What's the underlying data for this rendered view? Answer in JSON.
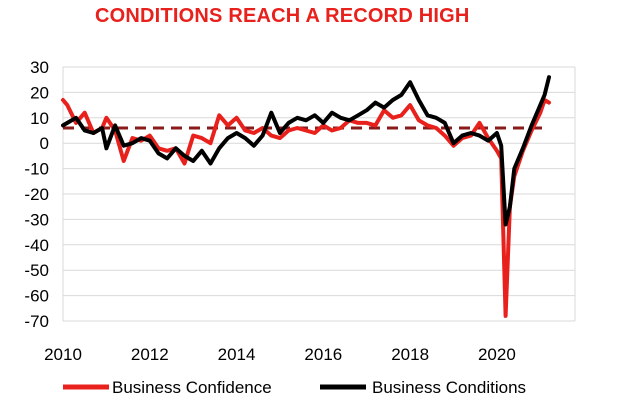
{
  "chart_data": {
    "type": "line",
    "title": "CONDITIONS REACH A RECORD HIGH",
    "xlabel": "",
    "ylabel": "",
    "xlim": [
      2010,
      2021.8
    ],
    "ylim": [
      -70,
      30
    ],
    "x_ticks": [
      "2010",
      "2012",
      "2014",
      "2016",
      "2018",
      "2020"
    ],
    "y_ticks": [
      "30",
      "20",
      "10",
      "0",
      "-10",
      "-20",
      "-30",
      "-40",
      "-50",
      "-60",
      "-70"
    ],
    "grid": "horizontal",
    "legend_position": "bottom",
    "reference_line": {
      "y": 6,
      "style": "dashed",
      "color": "#8b1a1a"
    },
    "series": [
      {
        "name": "Business Confidence",
        "color": "#e8211d",
        "x": [
          2010.0,
          2010.1,
          2010.3,
          2010.5,
          2010.7,
          2010.9,
          2011.0,
          2011.2,
          2011.4,
          2011.6,
          2011.8,
          2012.0,
          2012.2,
          2012.4,
          2012.6,
          2012.8,
          2013.0,
          2013.2,
          2013.4,
          2013.6,
          2013.8,
          2014.0,
          2014.2,
          2014.4,
          2014.6,
          2014.8,
          2015.0,
          2015.2,
          2015.4,
          2015.6,
          2015.8,
          2016.0,
          2016.2,
          2016.4,
          2016.6,
          2016.8,
          2017.0,
          2017.2,
          2017.4,
          2017.6,
          2017.8,
          2018.0,
          2018.2,
          2018.4,
          2018.6,
          2018.8,
          2019.0,
          2019.2,
          2019.4,
          2019.6,
          2019.8,
          2020.0,
          2020.1,
          2020.2,
          2020.3,
          2020.4,
          2020.6,
          2020.8,
          2021.0,
          2021.1,
          2021.2
        ],
        "values": [
          17,
          15,
          8,
          12,
          4,
          6,
          10,
          5,
          -7,
          2,
          1,
          3,
          -2,
          -3,
          -2,
          -8,
          3,
          2,
          0,
          11,
          7,
          10,
          5,
          4,
          6,
          3,
          2,
          5,
          6,
          5,
          4,
          7,
          5,
          6,
          9,
          8,
          8,
          7,
          13,
          10,
          11,
          15,
          9,
          7,
          6,
          3,
          -1,
          2,
          3,
          8,
          2,
          -3,
          -6,
          -68,
          -25,
          -13,
          -3,
          5,
          12,
          17,
          16
        ]
      },
      {
        "name": "Business Conditions",
        "color": "#000000",
        "x": [
          2010.0,
          2010.1,
          2010.3,
          2010.5,
          2010.7,
          2010.9,
          2011.0,
          2011.2,
          2011.4,
          2011.6,
          2011.8,
          2012.0,
          2012.2,
          2012.4,
          2012.6,
          2012.8,
          2013.0,
          2013.2,
          2013.4,
          2013.6,
          2013.8,
          2014.0,
          2014.2,
          2014.4,
          2014.6,
          2014.8,
          2015.0,
          2015.2,
          2015.4,
          2015.6,
          2015.8,
          2016.0,
          2016.2,
          2016.4,
          2016.6,
          2016.8,
          2017.0,
          2017.2,
          2017.4,
          2017.6,
          2017.8,
          2018.0,
          2018.2,
          2018.4,
          2018.6,
          2018.8,
          2019.0,
          2019.2,
          2019.4,
          2019.6,
          2019.8,
          2020.0,
          2020.1,
          2020.2,
          2020.3,
          2020.4,
          2020.6,
          2020.8,
          2021.0,
          2021.1,
          2021.2
        ],
        "values": [
          7,
          8,
          10,
          5,
          4,
          6,
          -2,
          7,
          -1,
          0,
          2,
          1,
          -4,
          -6,
          -2,
          -5,
          -7,
          -3,
          -8,
          -2,
          2,
          4,
          2,
          -1,
          3,
          12,
          4,
          8,
          10,
          9,
          11,
          8,
          12,
          10,
          9,
          11,
          13,
          16,
          14,
          17,
          19,
          24,
          17,
          11,
          10,
          8,
          0,
          3,
          4,
          3,
          1,
          4,
          -1,
          -32,
          -25,
          -10,
          -2,
          7,
          15,
          19,
          26
        ]
      }
    ]
  }
}
